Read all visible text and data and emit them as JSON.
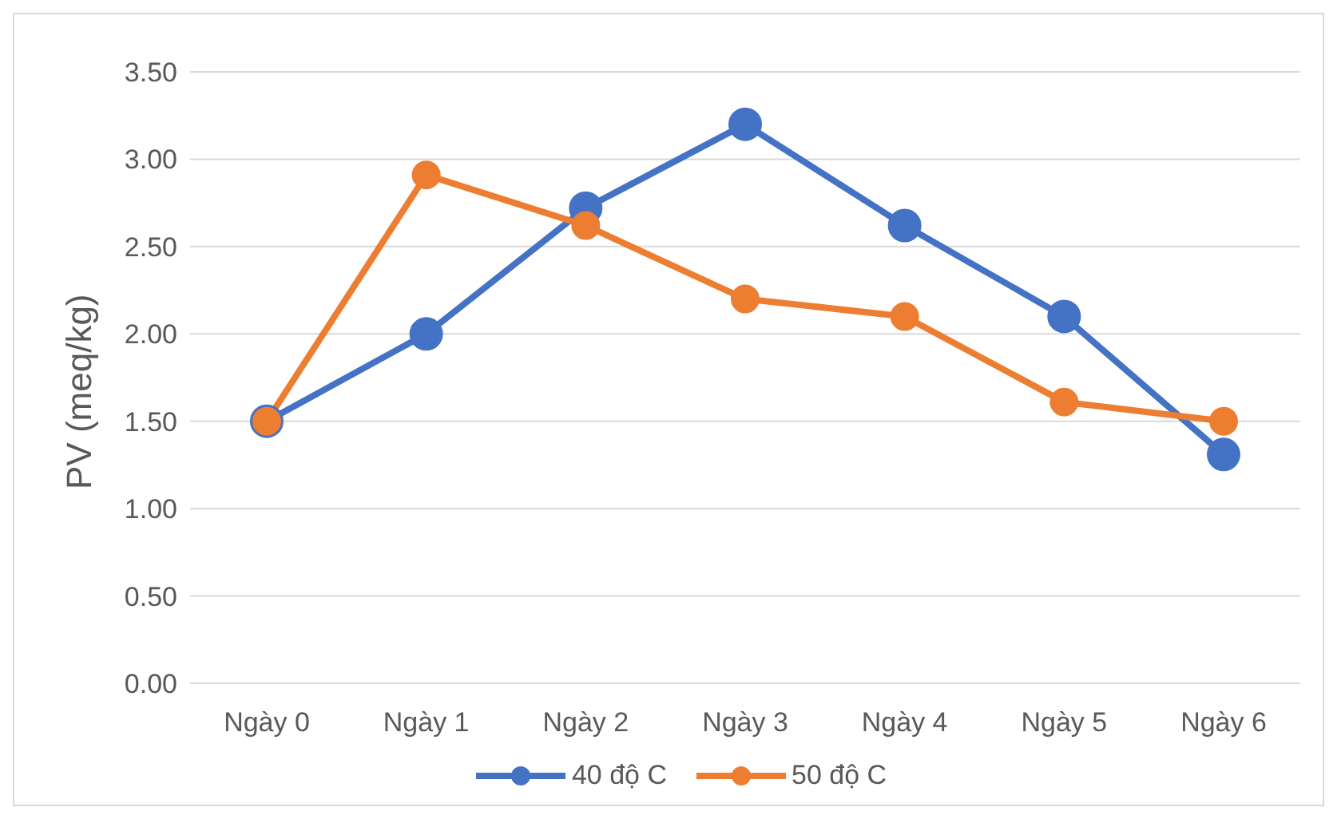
{
  "chart_data": {
    "type": "line",
    "ylabel": "PV (meq/kg)",
    "categories": [
      "Ngày 0",
      "Ngày 1",
      "Ngày 2",
      "Ngày 3",
      "Ngày 4",
      "Ngày 5",
      "Ngày 6"
    ],
    "series": [
      {
        "name": "40 độ C",
        "color": "#4472c4",
        "values": [
          1.5,
          2.0,
          2.72,
          3.2,
          2.62,
          2.1,
          1.31
        ]
      },
      {
        "name": "50 độ C",
        "color": "#ed7d31",
        "values": [
          1.5,
          2.91,
          2.62,
          2.2,
          2.1,
          1.61,
          1.5
        ]
      }
    ],
    "ylim": [
      0,
      3.5
    ],
    "yticks": [
      {
        "value": 0,
        "label": "0.00"
      },
      {
        "value": 0.5,
        "label": "0.50"
      },
      {
        "value": 1,
        "label": "1.00"
      },
      {
        "value": 1.5,
        "label": "1.50"
      },
      {
        "value": 2,
        "label": "2.00"
      },
      {
        "value": 2.5,
        "label": "2.50"
      },
      {
        "value": 3,
        "label": "3.00"
      },
      {
        "value": 3.5,
        "label": "3.50"
      }
    ],
    "grid": "y",
    "legend": "bottom",
    "marker": "circle",
    "line_style": "solid"
  }
}
